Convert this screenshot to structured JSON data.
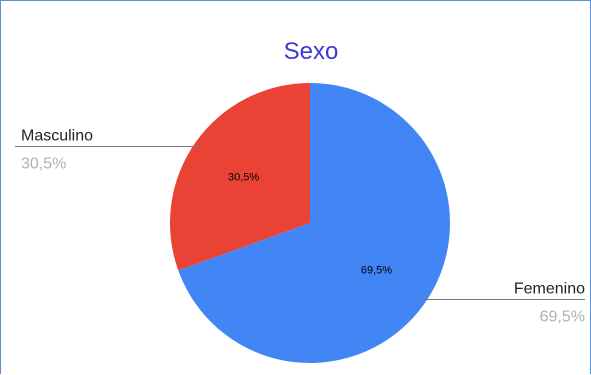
{
  "chart_data": {
    "type": "pie",
    "title": "Sexo",
    "slices": [
      {
        "label": "Femenino",
        "value": 69.5,
        "value_label": "69,5%",
        "color": "#4285f4"
      },
      {
        "label": "Masculino",
        "value": 30.5,
        "value_label": "30,5%",
        "color": "#ea4335"
      }
    ],
    "start_angle_deg": 0,
    "direction": "clockwise",
    "legend": "none"
  }
}
